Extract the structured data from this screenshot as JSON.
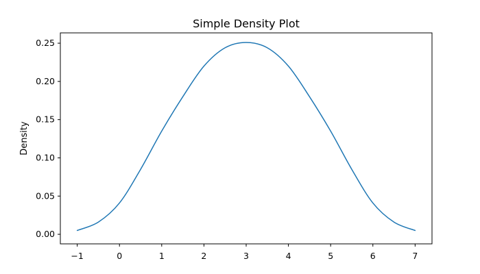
{
  "chart_data": {
    "type": "line",
    "title": "Simple Density Plot",
    "xlabel": "",
    "ylabel": "Density",
    "xlim": [
      -1.4,
      7.4
    ],
    "ylim": [
      -0.0125,
      0.2635
    ],
    "x_ticks": [
      -1,
      0,
      1,
      2,
      3,
      4,
      5,
      6,
      7
    ],
    "x_tick_labels": [
      "−1",
      "0",
      "1",
      "2",
      "3",
      "4",
      "5",
      "6",
      "7"
    ],
    "y_ticks": [
      0.0,
      0.05,
      0.1,
      0.15,
      0.2,
      0.25
    ],
    "y_tick_labels": [
      "0.00",
      "0.05",
      "0.10",
      "0.15",
      "0.20",
      "0.25"
    ],
    "grid": false,
    "legend": "none",
    "line_color": "#1f77b4",
    "series": [
      {
        "x": [
          -1.0,
          -0.5,
          0.0,
          0.5,
          1.0,
          1.5,
          2.0,
          2.5,
          3.0,
          3.5,
          4.0,
          4.5,
          5.0,
          5.5,
          6.0,
          6.5,
          7.0
        ],
        "values": [
          0.005,
          0.016,
          0.041,
          0.085,
          0.135,
          0.18,
          0.22,
          0.244,
          0.251,
          0.244,
          0.22,
          0.18,
          0.135,
          0.085,
          0.041,
          0.016,
          0.005
        ]
      }
    ]
  }
}
